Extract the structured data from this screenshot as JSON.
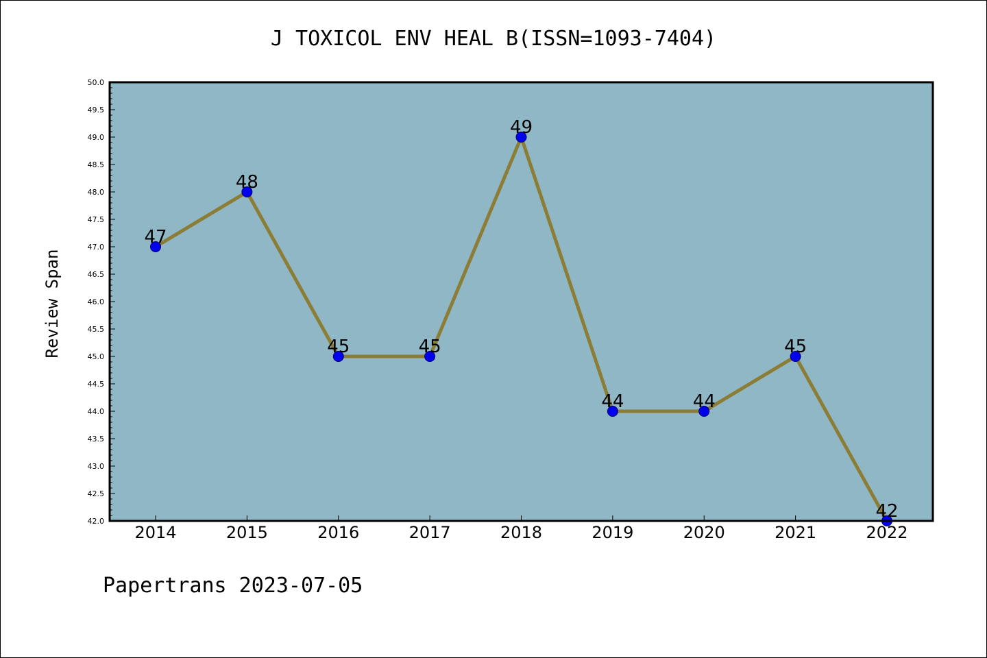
{
  "chart_data": {
    "type": "line",
    "title": "J TOXICOL ENV HEAL B(ISSN=1093-7404)",
    "xlabel": "",
    "ylabel": "Review Span",
    "categories": [
      "2014",
      "2015",
      "2016",
      "2017",
      "2018",
      "2019",
      "2020",
      "2021",
      "2022"
    ],
    "series": [
      {
        "values": [
          47,
          48,
          45,
          45,
          49,
          44,
          44,
          45,
          42
        ]
      }
    ],
    "data_labels": [
      "47",
      "48",
      "45",
      "45",
      "49",
      "44",
      "44",
      "45",
      "42"
    ],
    "ylim": [
      42.0,
      50.0
    ],
    "yticks": [
      "42.0",
      "42.5",
      "43.0",
      "43.5",
      "44.0",
      "44.5",
      "45.0",
      "45.5",
      "46.0",
      "46.5",
      "47.0",
      "47.5",
      "48.0",
      "48.5",
      "49.0",
      "49.5",
      "50.0"
    ],
    "grid": false,
    "colors": {
      "plot_background": "#8fb7c5",
      "line": "#8b7d35",
      "marker": "#0000ee",
      "marker_edge": "#000066"
    }
  },
  "footer": "Papertrans 2023-07-05"
}
